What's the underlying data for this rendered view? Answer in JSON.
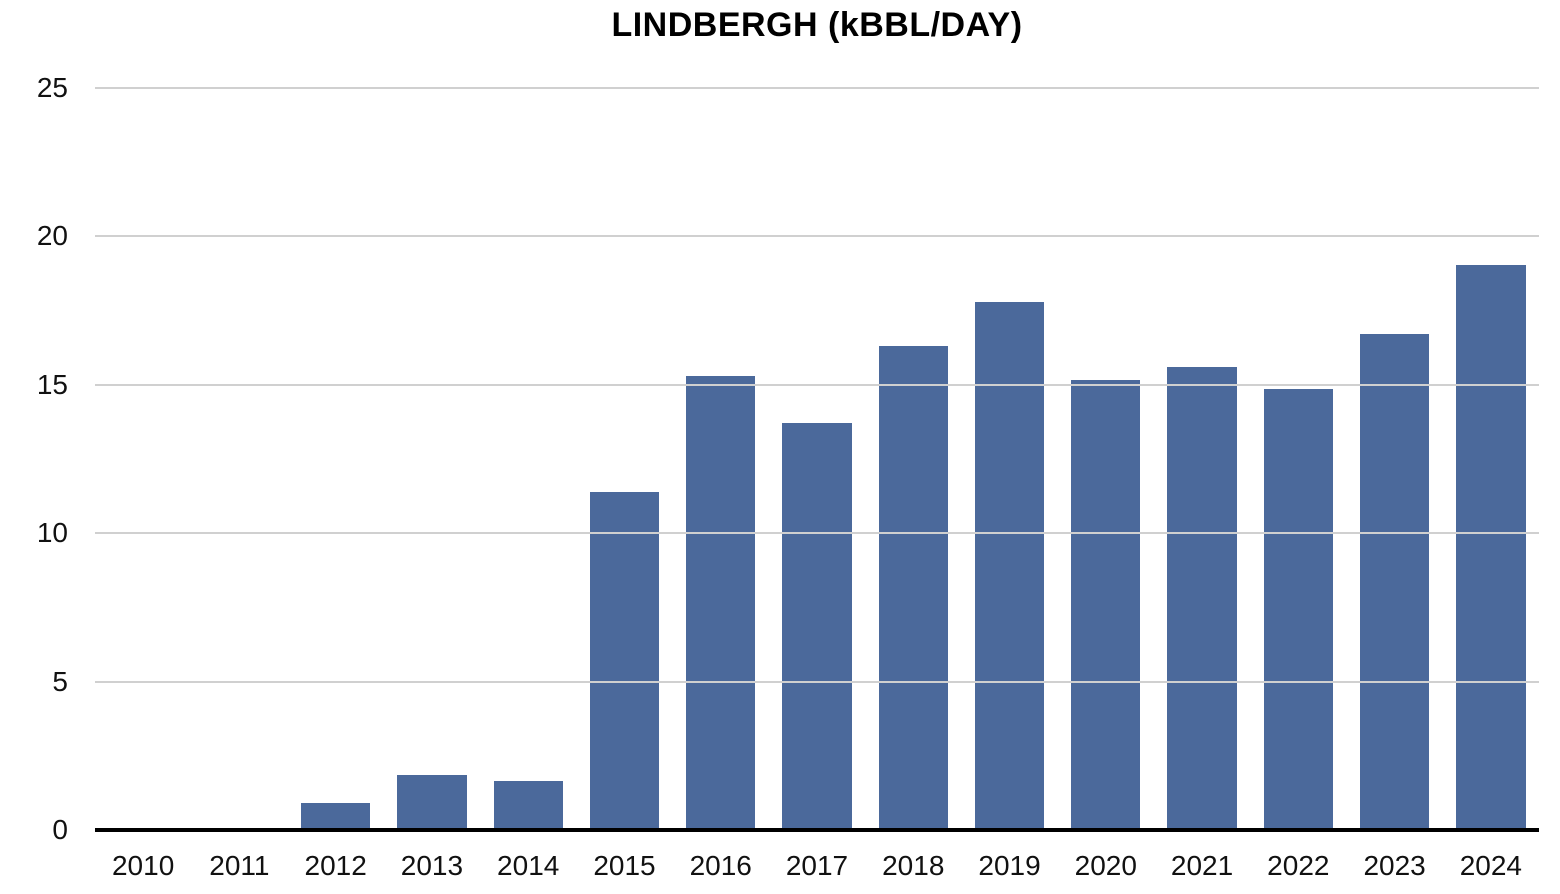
{
  "chart_data": {
    "type": "bar",
    "title": "LINDBERGH (kBBL/DAY)",
    "categories": [
      "2010",
      "2011",
      "2012",
      "2013",
      "2014",
      "2015",
      "2016",
      "2017",
      "2018",
      "2019",
      "2020",
      "2021",
      "2022",
      "2023",
      "2024"
    ],
    "values": [
      0,
      0,
      0.9,
      1.85,
      1.65,
      11.4,
      15.3,
      13.7,
      16.3,
      17.8,
      15.15,
      15.6,
      14.85,
      16.7,
      19.05
    ],
    "xlabel": "",
    "ylabel": "",
    "ylim": [
      0,
      25
    ],
    "yticks": [
      0,
      5,
      10,
      15,
      20,
      25
    ],
    "grid": true,
    "legend": false,
    "colors": {
      "bar": "#4b699b",
      "gridline": "#d0d0d0",
      "zero_axis": "#000000",
      "tick_text": "#111111"
    }
  }
}
